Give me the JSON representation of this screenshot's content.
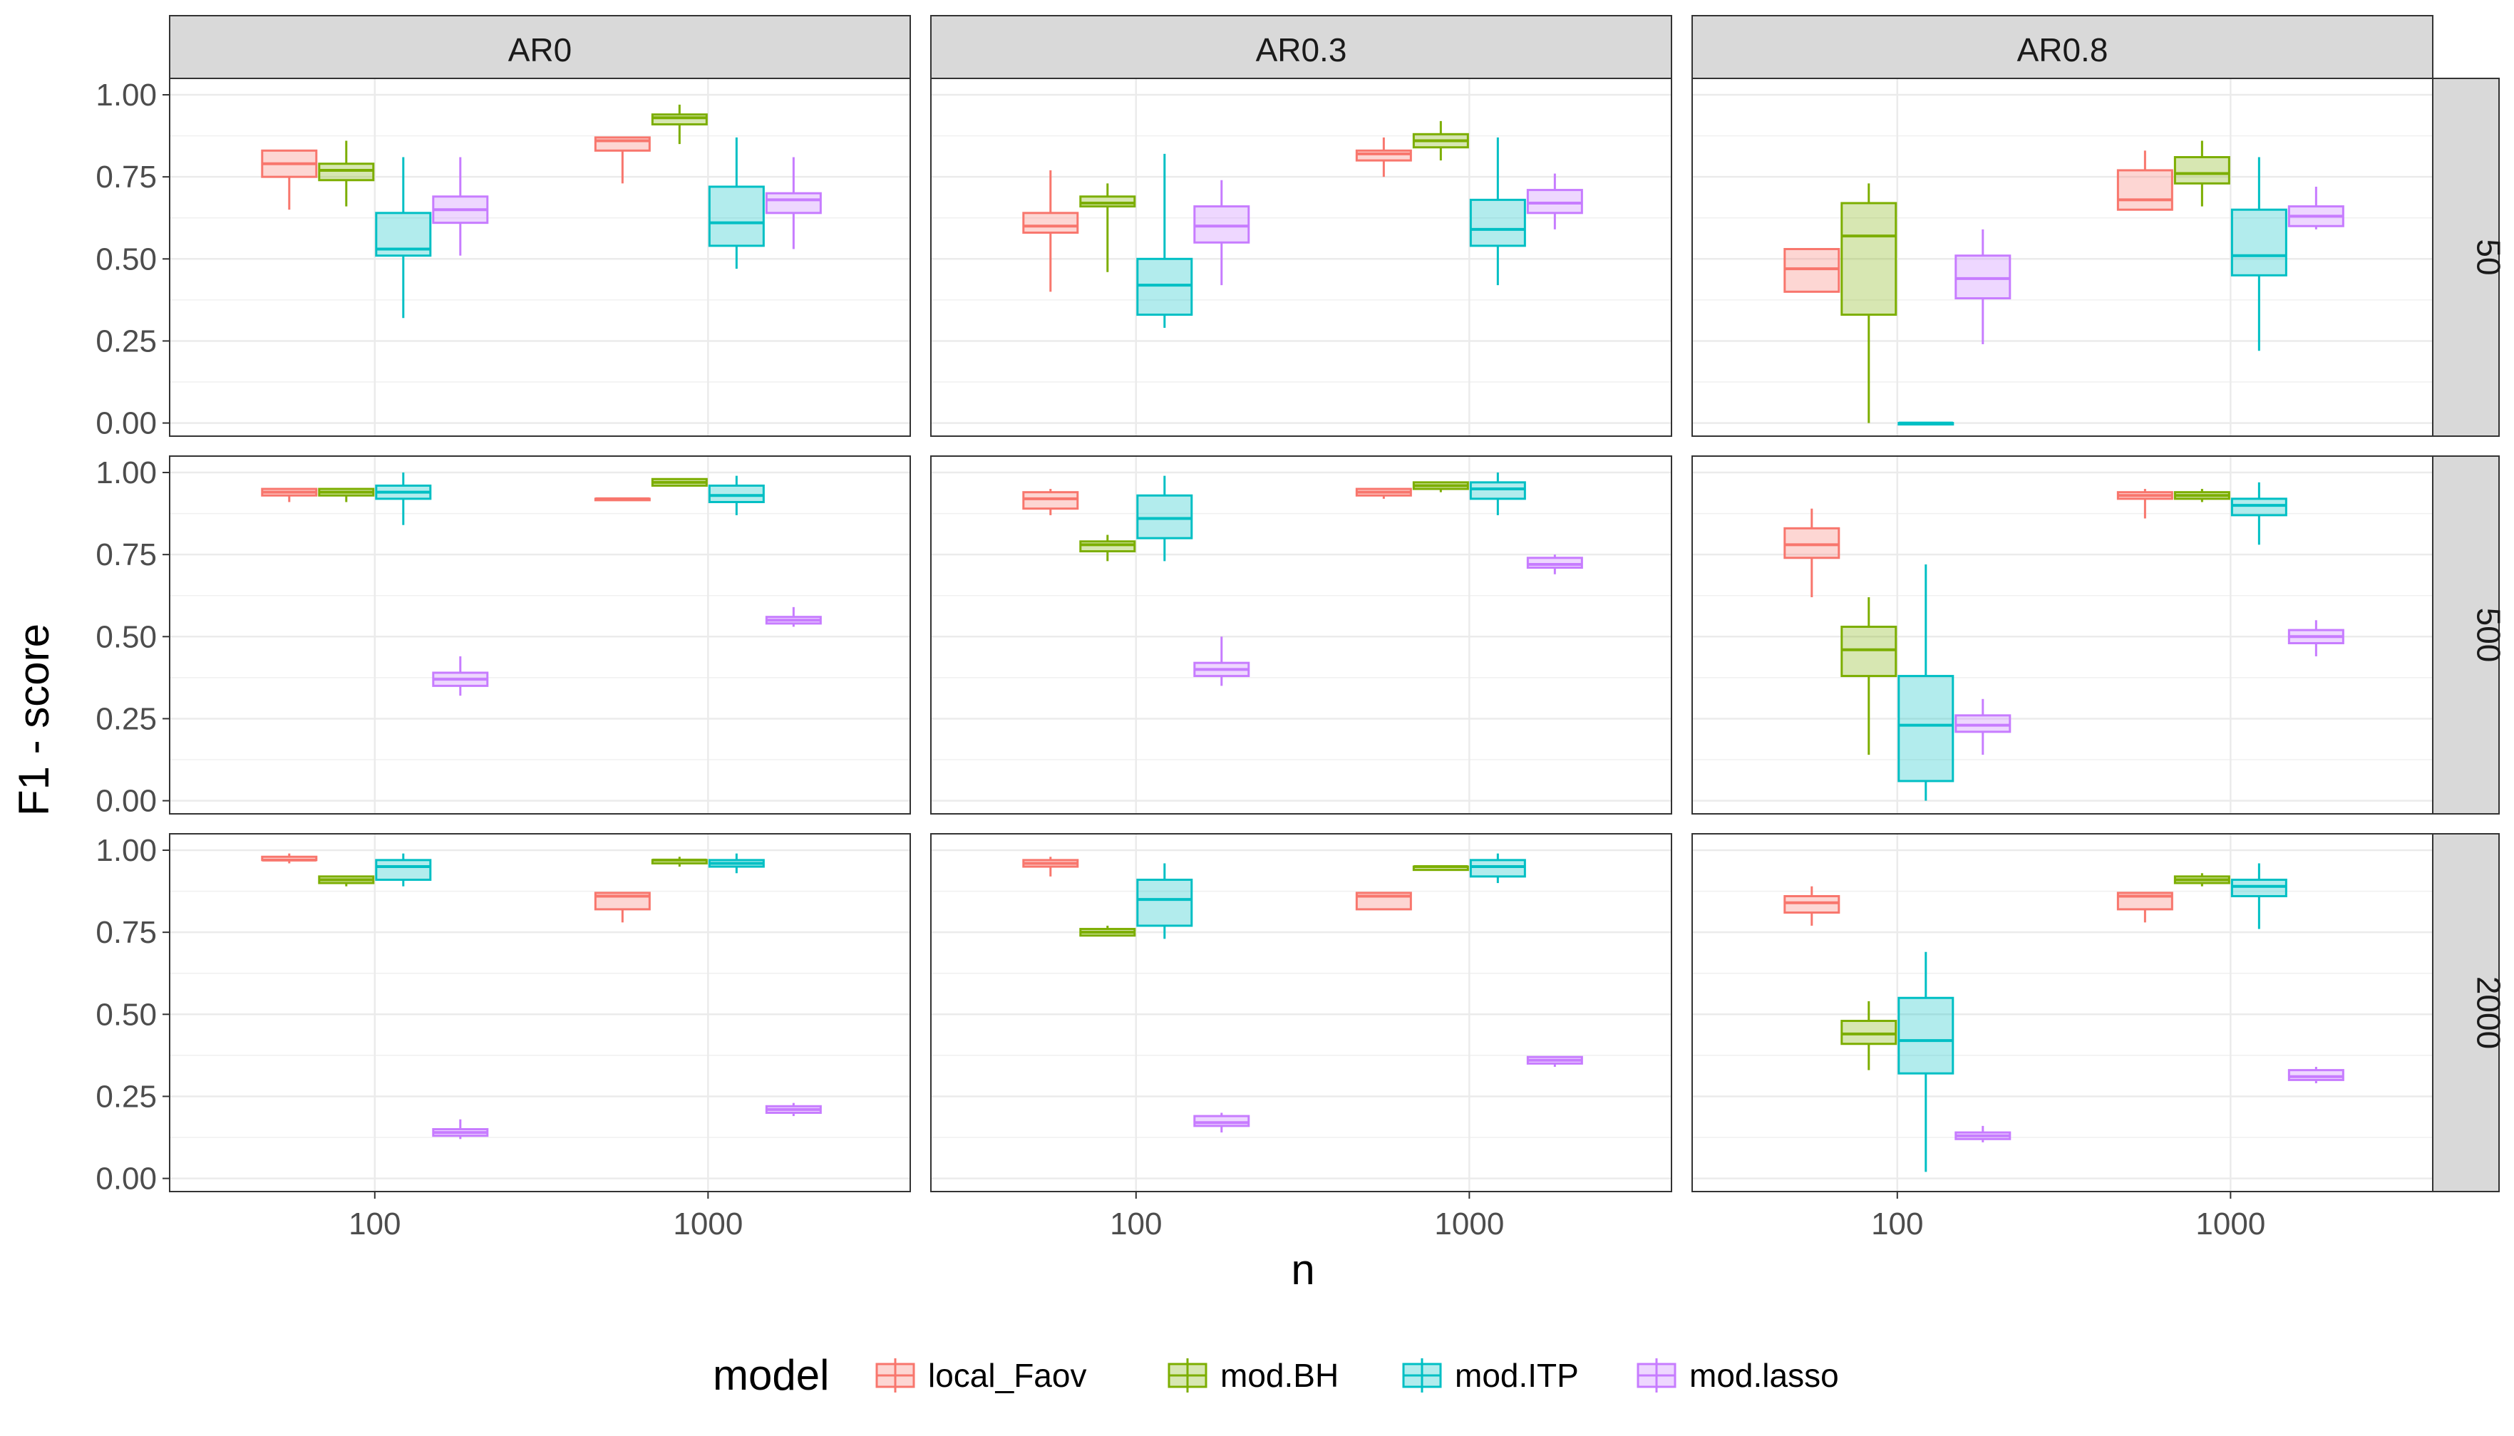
{
  "chart_data": {
    "type": "boxplot",
    "xlabel": "n",
    "ylabel": "F1 - score",
    "x_categories": [
      "100",
      "1000"
    ],
    "y_ticks": [
      "0.00",
      "0.25",
      "0.50",
      "0.75",
      "1.00"
    ],
    "ylim": [
      -0.04,
      1.05
    ],
    "grid": true,
    "legend": {
      "title": "model",
      "position": "bottom",
      "entries": [
        {
          "name": "local_Faov",
          "color": "#F8766D"
        },
        {
          "name": "mod.BH",
          "color": "#7CAE00"
        },
        {
          "name": "mod.ITP",
          "color": "#00BFC4"
        },
        {
          "name": "mod.lasso",
          "color": "#C77CFF"
        }
      ]
    },
    "facet_columns": [
      "AR0",
      "AR0.3",
      "AR0.8"
    ],
    "facet_rows": [
      "50",
      "500",
      "2000"
    ],
    "panels": [
      {
        "col": "AR0",
        "row": "50",
        "boxes": [
          {
            "n": "100",
            "model": "local_Faov",
            "q1": 0.75,
            "median": 0.79,
            "q3": 0.83,
            "min": 0.65,
            "max": 0.83
          },
          {
            "n": "100",
            "model": "mod.BH",
            "q1": 0.74,
            "median": 0.77,
            "q3": 0.79,
            "min": 0.66,
            "max": 0.86
          },
          {
            "n": "100",
            "model": "mod.ITP",
            "q1": 0.51,
            "median": 0.53,
            "q3": 0.64,
            "min": 0.32,
            "max": 0.81
          },
          {
            "n": "100",
            "model": "mod.lasso",
            "q1": 0.61,
            "median": 0.65,
            "q3": 0.69,
            "min": 0.51,
            "max": 0.81
          },
          {
            "n": "1000",
            "model": "local_Faov",
            "q1": 0.83,
            "median": 0.86,
            "q3": 0.87,
            "min": 0.73,
            "max": 0.87
          },
          {
            "n": "1000",
            "model": "mod.BH",
            "q1": 0.91,
            "median": 0.93,
            "q3": 0.94,
            "min": 0.85,
            "max": 0.97
          },
          {
            "n": "1000",
            "model": "mod.ITP",
            "q1": 0.54,
            "median": 0.61,
            "q3": 0.72,
            "min": 0.47,
            "max": 0.87
          },
          {
            "n": "1000",
            "model": "mod.lasso",
            "q1": 0.64,
            "median": 0.68,
            "q3": 0.7,
            "min": 0.53,
            "max": 0.81
          }
        ]
      },
      {
        "col": "AR0.3",
        "row": "50",
        "boxes": [
          {
            "n": "100",
            "model": "local_Faov",
            "q1": 0.58,
            "median": 0.6,
            "q3": 0.64,
            "min": 0.4,
            "max": 0.77
          },
          {
            "n": "100",
            "model": "mod.BH",
            "q1": 0.66,
            "median": 0.67,
            "q3": 0.69,
            "min": 0.46,
            "max": 0.73
          },
          {
            "n": "100",
            "model": "mod.ITP",
            "q1": 0.33,
            "median": 0.42,
            "q3": 0.5,
            "min": 0.29,
            "max": 0.82
          },
          {
            "n": "100",
            "model": "mod.lasso",
            "q1": 0.55,
            "median": 0.6,
            "q3": 0.66,
            "min": 0.42,
            "max": 0.74
          },
          {
            "n": "1000",
            "model": "local_Faov",
            "q1": 0.8,
            "median": 0.82,
            "q3": 0.83,
            "min": 0.75,
            "max": 0.87
          },
          {
            "n": "1000",
            "model": "mod.BH",
            "q1": 0.84,
            "median": 0.86,
            "q3": 0.88,
            "min": 0.8,
            "max": 0.92
          },
          {
            "n": "1000",
            "model": "mod.ITP",
            "q1": 0.54,
            "median": 0.59,
            "q3": 0.68,
            "min": 0.42,
            "max": 0.87
          },
          {
            "n": "1000",
            "model": "mod.lasso",
            "q1": 0.64,
            "median": 0.67,
            "q3": 0.71,
            "min": 0.59,
            "max": 0.76
          }
        ]
      },
      {
        "col": "AR0.8",
        "row": "50",
        "boxes": [
          {
            "n": "100",
            "model": "local_Faov",
            "q1": 0.4,
            "median": 0.47,
            "q3": 0.53,
            "min": 0.4,
            "max": 0.53
          },
          {
            "n": "100",
            "model": "mod.BH",
            "q1": 0.33,
            "median": 0.57,
            "q3": 0.67,
            "min": 0.0,
            "max": 0.73
          },
          {
            "n": "100",
            "model": "mod.ITP",
            "q1": 0.0,
            "median": 0.0,
            "q3": 0.0,
            "min": 0.0,
            "max": 0.0
          },
          {
            "n": "100",
            "model": "mod.lasso",
            "q1": 0.38,
            "median": 0.44,
            "q3": 0.51,
            "min": 0.24,
            "max": 0.59
          },
          {
            "n": "1000",
            "model": "local_Faov",
            "q1": 0.65,
            "median": 0.68,
            "q3": 0.77,
            "min": 0.65,
            "max": 0.83
          },
          {
            "n": "1000",
            "model": "mod.BH",
            "q1": 0.73,
            "median": 0.76,
            "q3": 0.81,
            "min": 0.66,
            "max": 0.86
          },
          {
            "n": "1000",
            "model": "mod.ITP",
            "q1": 0.45,
            "median": 0.51,
            "q3": 0.65,
            "min": 0.22,
            "max": 0.81
          },
          {
            "n": "1000",
            "model": "mod.lasso",
            "q1": 0.6,
            "median": 0.63,
            "q3": 0.66,
            "min": 0.59,
            "max": 0.72
          }
        ]
      },
      {
        "col": "AR0",
        "row": "500",
        "boxes": [
          {
            "n": "100",
            "model": "local_Faov",
            "q1": 0.93,
            "median": 0.94,
            "q3": 0.95,
            "min": 0.91,
            "max": 0.95
          },
          {
            "n": "100",
            "model": "mod.BH",
            "q1": 0.93,
            "median": 0.94,
            "q3": 0.95,
            "min": 0.91,
            "max": 0.95
          },
          {
            "n": "100",
            "model": "mod.ITP",
            "q1": 0.92,
            "median": 0.94,
            "q3": 0.96,
            "min": 0.84,
            "max": 1.0
          },
          {
            "n": "100",
            "model": "mod.lasso",
            "q1": 0.35,
            "median": 0.37,
            "q3": 0.39,
            "min": 0.32,
            "max": 0.44
          },
          {
            "n": "1000",
            "model": "local_Faov",
            "q1": 0.92,
            "median": 0.92,
            "q3": 0.92,
            "min": 0.92,
            "max": 0.92
          },
          {
            "n": "1000",
            "model": "mod.BH",
            "q1": 0.96,
            "median": 0.97,
            "q3": 0.98,
            "min": 0.96,
            "max": 0.98
          },
          {
            "n": "1000",
            "model": "mod.ITP",
            "q1": 0.91,
            "median": 0.93,
            "q3": 0.96,
            "min": 0.87,
            "max": 0.99
          },
          {
            "n": "1000",
            "model": "mod.lasso",
            "q1": 0.54,
            "median": 0.55,
            "q3": 0.56,
            "min": 0.53,
            "max": 0.59
          }
        ]
      },
      {
        "col": "AR0.3",
        "row": "500",
        "boxes": [
          {
            "n": "100",
            "model": "local_Faov",
            "q1": 0.89,
            "median": 0.92,
            "q3": 0.94,
            "min": 0.87,
            "max": 0.95
          },
          {
            "n": "100",
            "model": "mod.BH",
            "q1": 0.76,
            "median": 0.78,
            "q3": 0.79,
            "min": 0.73,
            "max": 0.81
          },
          {
            "n": "100",
            "model": "mod.ITP",
            "q1": 0.8,
            "median": 0.86,
            "q3": 0.93,
            "min": 0.73,
            "max": 0.99
          },
          {
            "n": "100",
            "model": "mod.lasso",
            "q1": 0.38,
            "median": 0.4,
            "q3": 0.42,
            "min": 0.35,
            "max": 0.5
          },
          {
            "n": "1000",
            "model": "local_Faov",
            "q1": 0.93,
            "median": 0.94,
            "q3": 0.95,
            "min": 0.92,
            "max": 0.95
          },
          {
            "n": "1000",
            "model": "mod.BH",
            "q1": 0.95,
            "median": 0.96,
            "q3": 0.97,
            "min": 0.94,
            "max": 0.97
          },
          {
            "n": "1000",
            "model": "mod.ITP",
            "q1": 0.92,
            "median": 0.95,
            "q3": 0.97,
            "min": 0.87,
            "max": 1.0
          },
          {
            "n": "1000",
            "model": "mod.lasso",
            "q1": 0.71,
            "median": 0.72,
            "q3": 0.74,
            "min": 0.69,
            "max": 0.75
          }
        ]
      },
      {
        "col": "AR0.8",
        "row": "500",
        "boxes": [
          {
            "n": "100",
            "model": "local_Faov",
            "q1": 0.74,
            "median": 0.78,
            "q3": 0.83,
            "min": 0.62,
            "max": 0.89
          },
          {
            "n": "100",
            "model": "mod.BH",
            "q1": 0.38,
            "median": 0.46,
            "q3": 0.53,
            "min": 0.14,
            "max": 0.62
          },
          {
            "n": "100",
            "model": "mod.ITP",
            "q1": 0.06,
            "median": 0.23,
            "q3": 0.38,
            "min": 0.0,
            "max": 0.72
          },
          {
            "n": "100",
            "model": "mod.lasso",
            "q1": 0.21,
            "median": 0.23,
            "q3": 0.26,
            "min": 0.14,
            "max": 0.31
          },
          {
            "n": "1000",
            "model": "local_Faov",
            "q1": 0.92,
            "median": 0.93,
            "q3": 0.94,
            "min": 0.86,
            "max": 0.95
          },
          {
            "n": "1000",
            "model": "mod.BH",
            "q1": 0.92,
            "median": 0.93,
            "q3": 0.94,
            "min": 0.91,
            "max": 0.95
          },
          {
            "n": "1000",
            "model": "mod.ITP",
            "q1": 0.87,
            "median": 0.9,
            "q3": 0.92,
            "min": 0.78,
            "max": 0.97
          },
          {
            "n": "1000",
            "model": "mod.lasso",
            "q1": 0.48,
            "median": 0.5,
            "q3": 0.52,
            "min": 0.44,
            "max": 0.55
          }
        ]
      },
      {
        "col": "AR0",
        "row": "2000",
        "boxes": [
          {
            "n": "100",
            "model": "local_Faov",
            "q1": 0.97,
            "median": 0.97,
            "q3": 0.98,
            "min": 0.96,
            "max": 0.99
          },
          {
            "n": "100",
            "model": "mod.BH",
            "q1": 0.9,
            "median": 0.91,
            "q3": 0.92,
            "min": 0.89,
            "max": 0.92
          },
          {
            "n": "100",
            "model": "mod.ITP",
            "q1": 0.91,
            "median": 0.95,
            "q3": 0.97,
            "min": 0.89,
            "max": 0.99
          },
          {
            "n": "100",
            "model": "mod.lasso",
            "q1": 0.13,
            "median": 0.14,
            "q3": 0.15,
            "min": 0.12,
            "max": 0.18
          },
          {
            "n": "1000",
            "model": "local_Faov",
            "q1": 0.82,
            "median": 0.86,
            "q3": 0.87,
            "min": 0.78,
            "max": 0.87
          },
          {
            "n": "1000",
            "model": "mod.BH",
            "q1": 0.96,
            "median": 0.97,
            "q3": 0.97,
            "min": 0.95,
            "max": 0.98
          },
          {
            "n": "1000",
            "model": "mod.ITP",
            "q1": 0.95,
            "median": 0.96,
            "q3": 0.97,
            "min": 0.93,
            "max": 0.99
          },
          {
            "n": "1000",
            "model": "mod.lasso",
            "q1": 0.2,
            "median": 0.21,
            "q3": 0.22,
            "min": 0.19,
            "max": 0.23
          }
        ]
      },
      {
        "col": "AR0.3",
        "row": "2000",
        "boxes": [
          {
            "n": "100",
            "model": "local_Faov",
            "q1": 0.95,
            "median": 0.96,
            "q3": 0.97,
            "min": 0.92,
            "max": 0.98
          },
          {
            "n": "100",
            "model": "mod.BH",
            "q1": 0.74,
            "median": 0.75,
            "q3": 0.76,
            "min": 0.74,
            "max": 0.77
          },
          {
            "n": "100",
            "model": "mod.ITP",
            "q1": 0.77,
            "median": 0.85,
            "q3": 0.91,
            "min": 0.73,
            "max": 0.96
          },
          {
            "n": "100",
            "model": "mod.lasso",
            "q1": 0.16,
            "median": 0.17,
            "q3": 0.19,
            "min": 0.14,
            "max": 0.2
          },
          {
            "n": "1000",
            "model": "local_Faov",
            "q1": 0.82,
            "median": 0.86,
            "q3": 0.87,
            "min": 0.82,
            "max": 0.87
          },
          {
            "n": "1000",
            "model": "mod.BH",
            "q1": 0.94,
            "median": 0.95,
            "q3": 0.95,
            "min": 0.94,
            "max": 0.95
          },
          {
            "n": "1000",
            "model": "mod.ITP",
            "q1": 0.92,
            "median": 0.95,
            "q3": 0.97,
            "min": 0.9,
            "max": 0.99
          },
          {
            "n": "1000",
            "model": "mod.lasso",
            "q1": 0.35,
            "median": 0.36,
            "q3": 0.37,
            "min": 0.34,
            "max": 0.37
          }
        ]
      },
      {
        "col": "AR0.8",
        "row": "2000",
        "boxes": [
          {
            "n": "100",
            "model": "local_Faov",
            "q1": 0.81,
            "median": 0.84,
            "q3": 0.86,
            "min": 0.77,
            "max": 0.89
          },
          {
            "n": "100",
            "model": "mod.BH",
            "q1": 0.41,
            "median": 0.44,
            "q3": 0.48,
            "min": 0.33,
            "max": 0.54
          },
          {
            "n": "100",
            "model": "mod.ITP",
            "q1": 0.32,
            "median": 0.42,
            "q3": 0.55,
            "min": 0.02,
            "max": 0.69
          },
          {
            "n": "100",
            "model": "mod.lasso",
            "q1": 0.12,
            "median": 0.13,
            "q3": 0.14,
            "min": 0.11,
            "max": 0.16
          },
          {
            "n": "1000",
            "model": "local_Faov",
            "q1": 0.82,
            "median": 0.86,
            "q3": 0.87,
            "min": 0.78,
            "max": 0.87
          },
          {
            "n": "1000",
            "model": "mod.BH",
            "q1": 0.9,
            "median": 0.91,
            "q3": 0.92,
            "min": 0.89,
            "max": 0.93
          },
          {
            "n": "1000",
            "model": "mod.ITP",
            "q1": 0.86,
            "median": 0.89,
            "q3": 0.91,
            "min": 0.76,
            "max": 0.96
          },
          {
            "n": "1000",
            "model": "mod.lasso",
            "q1": 0.3,
            "median": 0.31,
            "q3": 0.33,
            "min": 0.29,
            "max": 0.34
          }
        ]
      }
    ]
  }
}
